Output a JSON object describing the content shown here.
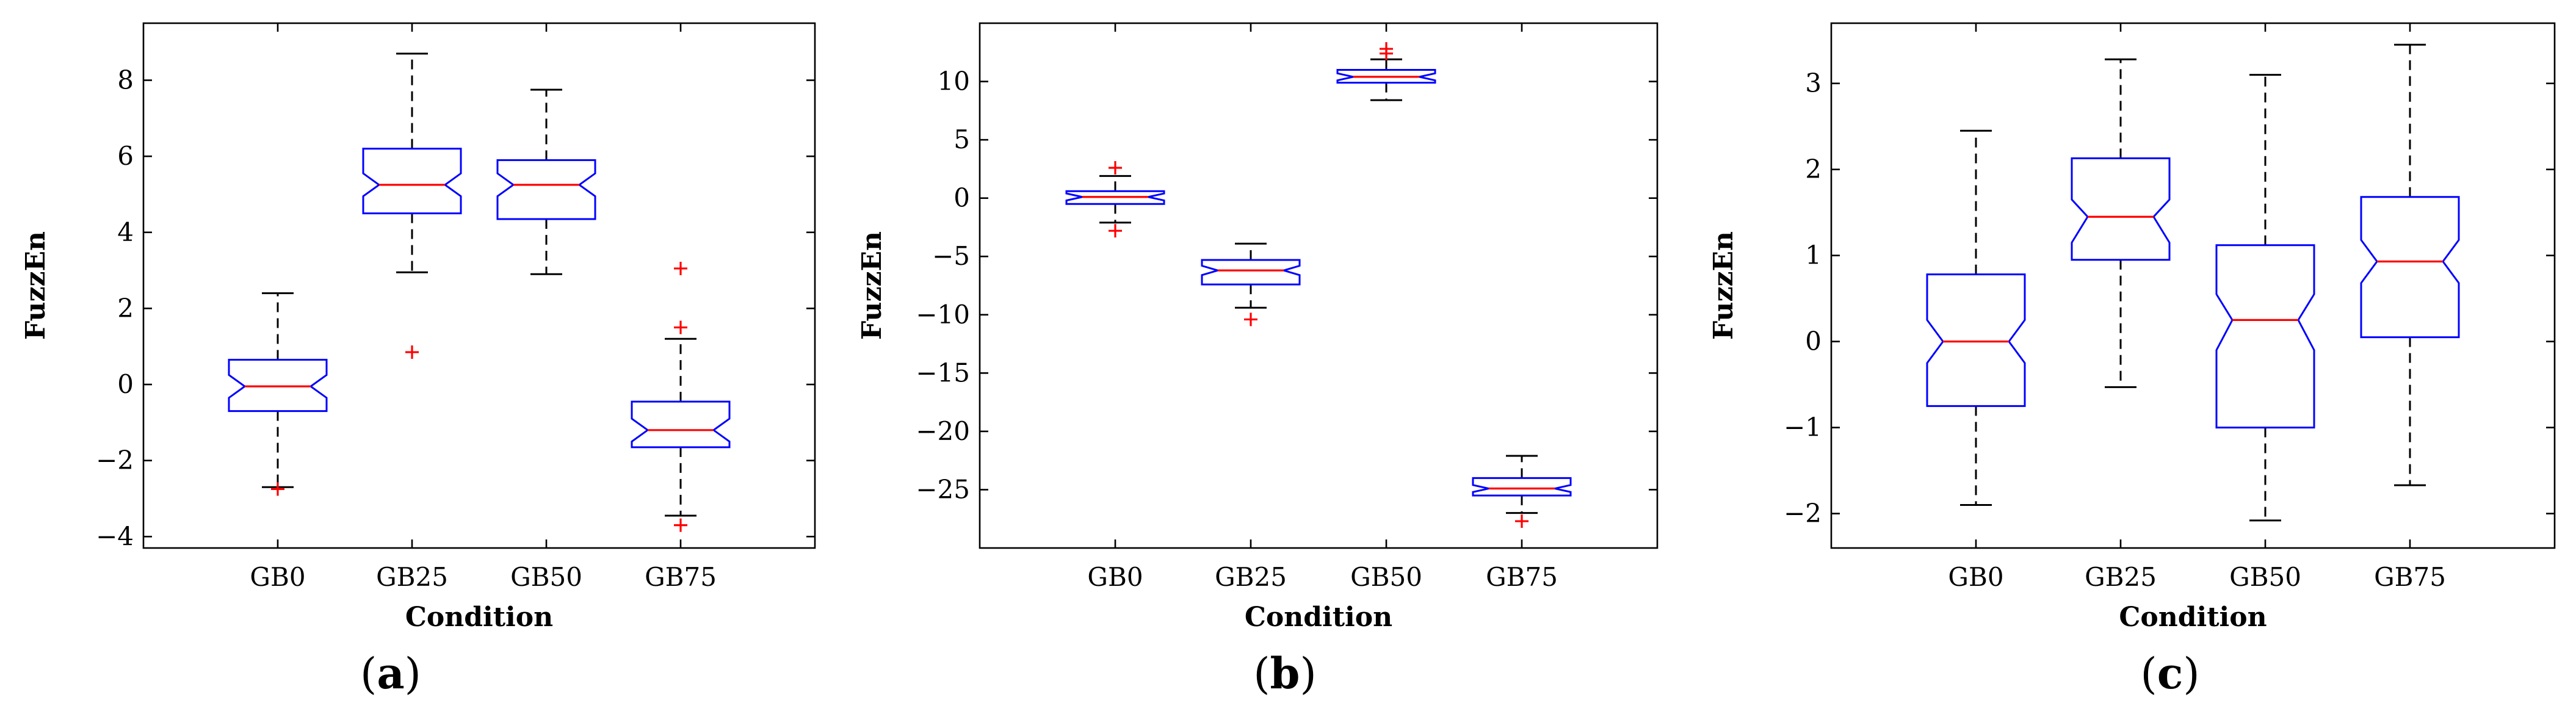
{
  "chart_data": [
    {
      "type": "box",
      "panel_label": "a",
      "xlabel": "Condition",
      "ylabel": "FuzzEn",
      "ylim": [
        -4.3,
        9.5
      ],
      "yticks": [
        -4,
        -2,
        0,
        2,
        4,
        6,
        8
      ],
      "categories": [
        "GB0",
        "GB25",
        "GB50",
        "GB75"
      ],
      "boxes": [
        {
          "category": "GB0",
          "whisker_low": -2.7,
          "q1": -0.7,
          "median": -0.05,
          "q3": 0.65,
          "whisker_high": 2.4,
          "notch_low": -0.35,
          "notch_high": 0.25,
          "outliers": [
            -2.75
          ]
        },
        {
          "category": "GB25",
          "whisker_low": 2.95,
          "q1": 4.5,
          "median": 5.25,
          "q3": 6.2,
          "whisker_high": 8.7,
          "notch_low": 4.95,
          "notch_high": 5.55,
          "outliers": [
            0.85
          ]
        },
        {
          "category": "GB50",
          "whisker_low": 2.9,
          "q1": 4.35,
          "median": 5.25,
          "q3": 5.9,
          "whisker_high": 7.75,
          "notch_low": 4.95,
          "notch_high": 5.55,
          "outliers": []
        },
        {
          "category": "GB75",
          "whisker_low": -3.45,
          "q1": -1.65,
          "median": -1.2,
          "q3": -0.45,
          "whisker_high": 1.2,
          "notch_low": -1.5,
          "notch_high": -0.9,
          "outliers": [
            3.05,
            1.5,
            -3.7
          ]
        }
      ]
    },
    {
      "type": "box",
      "panel_label": "b",
      "xlabel": "Condition",
      "ylabel": "FuzzEn",
      "ylim": [
        -30,
        15
      ],
      "yticks": [
        -25,
        -20,
        -15,
        -10,
        -5,
        0,
        5,
        10
      ],
      "categories": [
        "GB0",
        "GB25",
        "GB50",
        "GB75"
      ],
      "boxes": [
        {
          "category": "GB0",
          "whisker_low": -2.1,
          "q1": -0.5,
          "median": 0.1,
          "q3": 0.6,
          "whisker_high": 1.9,
          "notch_low": -0.2,
          "notch_high": 0.4,
          "outliers": [
            2.6,
            -2.8
          ]
        },
        {
          "category": "GB25",
          "whisker_low": -9.4,
          "q1": -7.4,
          "median": -6.2,
          "q3": -5.3,
          "whisker_high": -3.9,
          "notch_low": -6.6,
          "notch_high": -5.8,
          "outliers": [
            -10.4
          ]
        },
        {
          "category": "GB50",
          "whisker_low": 8.4,
          "q1": 9.9,
          "median": 10.4,
          "q3": 11.0,
          "whisker_high": 11.9,
          "notch_low": 10.1,
          "notch_high": 10.7,
          "outliers": [
            12.8,
            12.4
          ]
        },
        {
          "category": "GB75",
          "whisker_low": -27.0,
          "q1": -25.5,
          "median": -24.9,
          "q3": -24.0,
          "whisker_high": -22.1,
          "notch_low": -25.2,
          "notch_high": -24.6,
          "outliers": [
            -27.7
          ]
        }
      ]
    },
    {
      "type": "box",
      "panel_label": "c",
      "xlabel": "Condition",
      "ylabel": "FuzzEn",
      "ylim": [
        -2.4,
        3.7
      ],
      "yticks": [
        -2,
        -1,
        0,
        1,
        2,
        3
      ],
      "categories": [
        "GB0",
        "GB25",
        "GB50",
        "GB75"
      ],
      "boxes": [
        {
          "category": "GB0",
          "whisker_low": -1.9,
          "q1": -0.75,
          "median": 0.0,
          "q3": 0.78,
          "whisker_high": 2.45,
          "notch_low": -0.25,
          "notch_high": 0.25,
          "outliers": []
        },
        {
          "category": "GB25",
          "whisker_low": -0.53,
          "q1": 0.95,
          "median": 1.45,
          "q3": 2.13,
          "whisker_high": 3.28,
          "notch_low": 1.15,
          "notch_high": 1.65,
          "outliers": []
        },
        {
          "category": "GB50",
          "whisker_low": -2.08,
          "q1": -1.0,
          "median": 0.25,
          "q3": 1.12,
          "whisker_high": 3.1,
          "notch_low": -0.1,
          "notch_high": 0.55,
          "outliers": []
        },
        {
          "category": "GB75",
          "whisker_low": -1.67,
          "q1": 0.05,
          "median": 0.93,
          "q3": 1.68,
          "whisker_high": 3.45,
          "notch_low": 0.68,
          "notch_high": 1.18,
          "outliers": []
        }
      ]
    }
  ]
}
